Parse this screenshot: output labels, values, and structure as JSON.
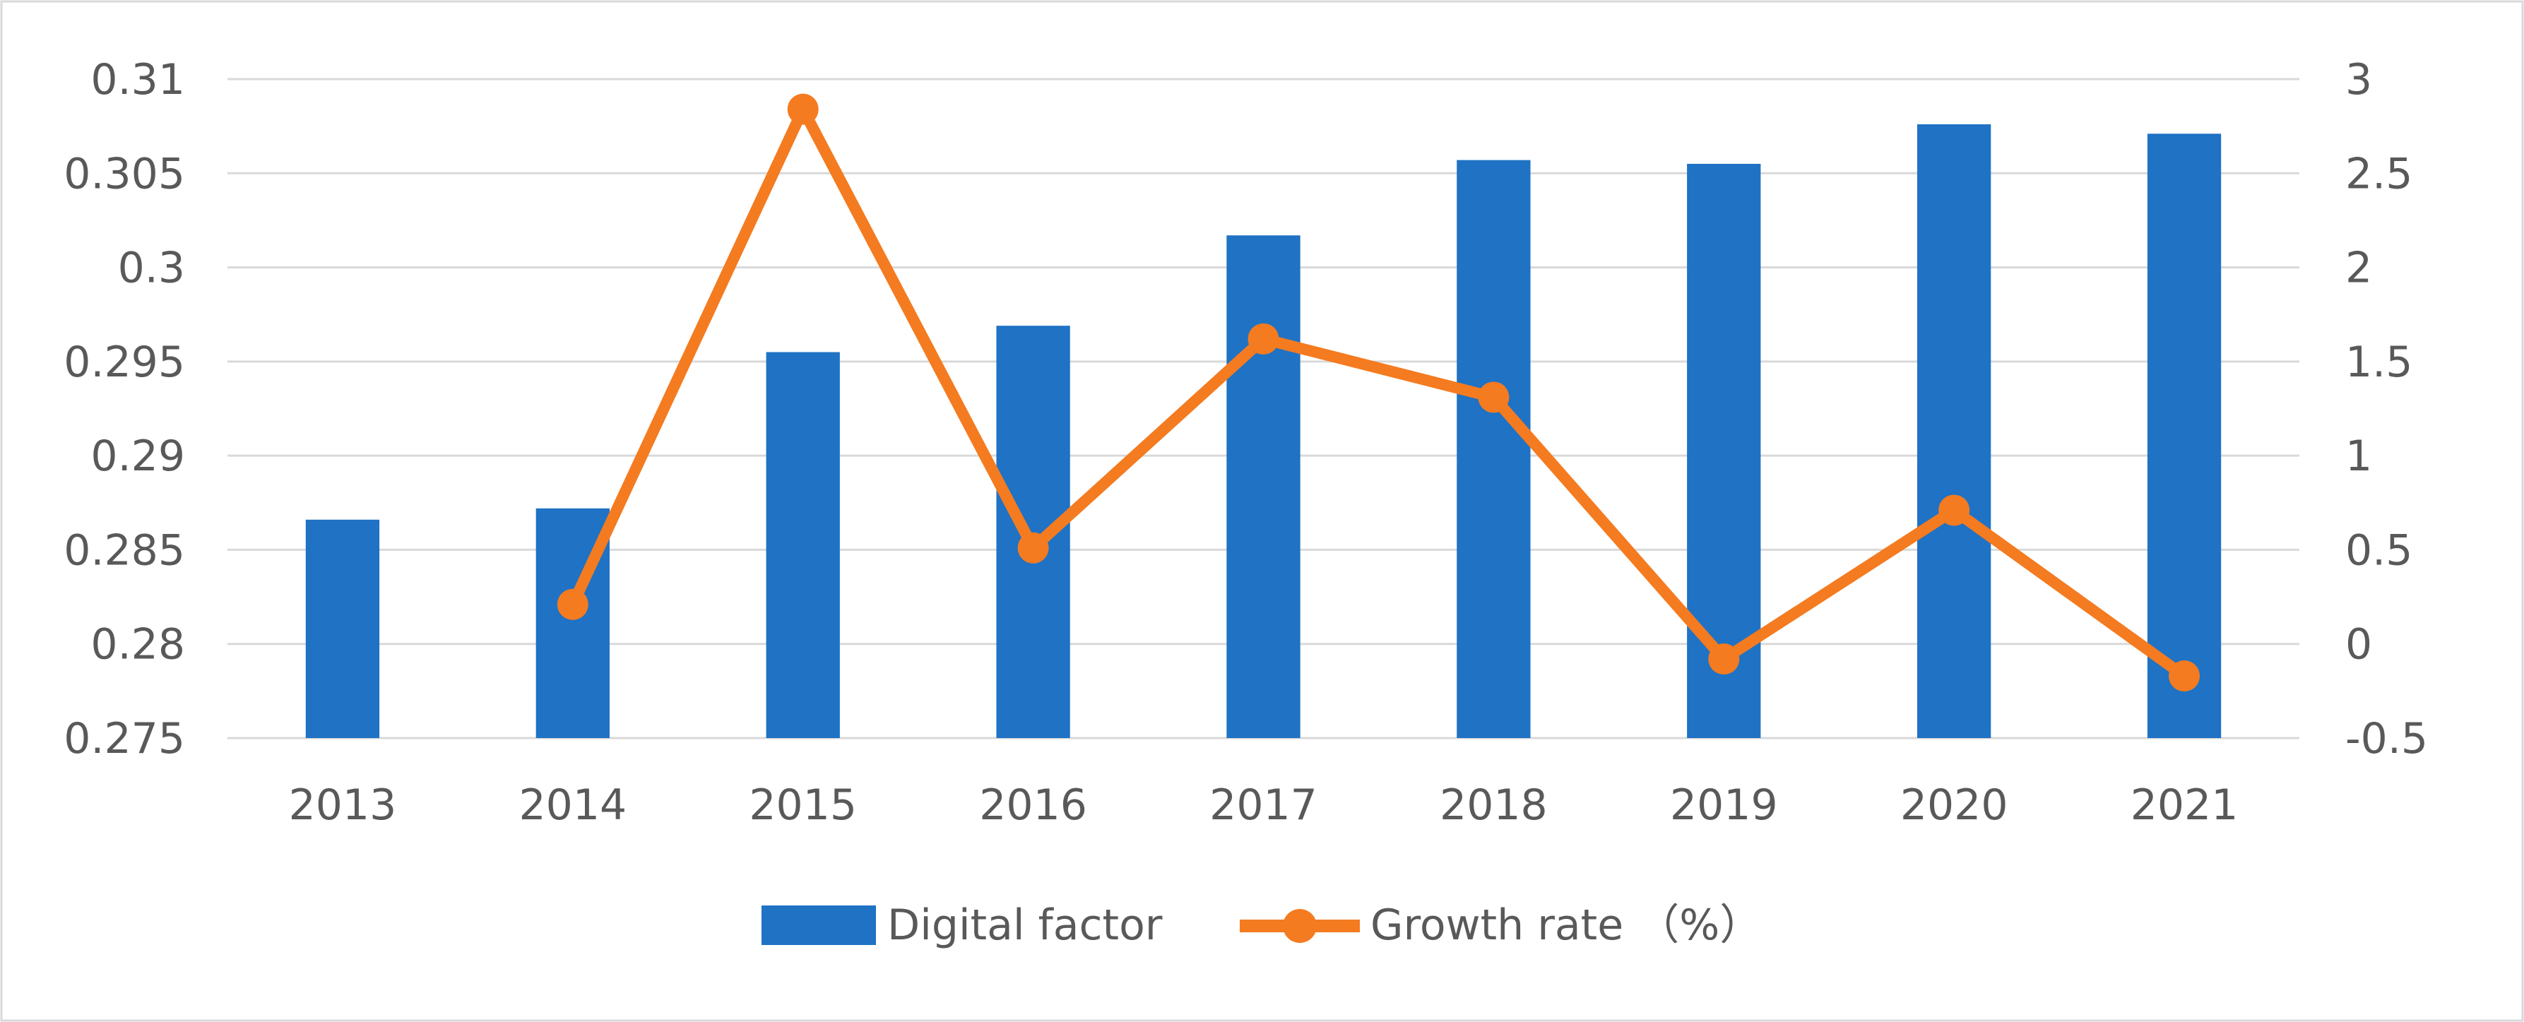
{
  "chart_data": {
    "type": "bar",
    "categories": [
      "2013",
      "2014",
      "2015",
      "2016",
      "2017",
      "2018",
      "2019",
      "2020",
      "2021"
    ],
    "series": [
      {
        "name": "Digital factor",
        "type": "bar",
        "axis": "left",
        "color": "#1f72c4",
        "values": [
          0.2866,
          0.2872,
          0.2955,
          0.2969,
          0.3017,
          0.3057,
          0.3055,
          0.3076,
          0.3071
        ]
      },
      {
        "name": "Growth rate （%）",
        "type": "line",
        "axis": "right",
        "color": "#f47b20",
        "values": [
          null,
          0.21,
          2.84,
          0.51,
          1.62,
          1.31,
          -0.08,
          0.71,
          -0.17
        ]
      }
    ],
    "y_left": {
      "ylim": [
        0.275,
        0.31
      ],
      "ticks": [
        "0.275",
        "0.28",
        "0.285",
        "0.29",
        "0.295",
        "0.3",
        "0.305",
        "0.31"
      ]
    },
    "y_right": {
      "ylim": [
        -0.5,
        3
      ],
      "ticks": [
        "-0.5",
        "0",
        "0.5",
        "1",
        "1.5",
        "2",
        "2.5",
        "3"
      ]
    },
    "grid": true,
    "legend_position": "bottom-center",
    "title": "",
    "xlabel": "",
    "ylabel": ""
  }
}
